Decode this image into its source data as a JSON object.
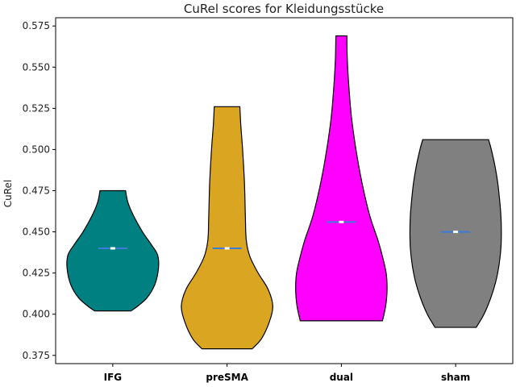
{
  "chart_data": {
    "type": "violin",
    "title": "CuRel scores for Kleidungsstücke",
    "xlabel": "",
    "ylabel": "CuRel",
    "ylim": [
      0.37,
      0.58
    ],
    "yticks": [
      0.375,
      0.4,
      0.425,
      0.45,
      0.475,
      0.5,
      0.525,
      0.55,
      0.575
    ],
    "ytick_labels": [
      "0.375",
      "0.400",
      "0.425",
      "0.450",
      "0.475",
      "0.500",
      "0.525",
      "0.550",
      "0.575"
    ],
    "grid": false,
    "series": [
      {
        "name": "IFG",
        "color": "#008080",
        "min": 0.402,
        "max": 0.475,
        "median": 0.44,
        "density": [
          [
            0.402,
            0.4
          ],
          [
            0.405,
            0.55
          ],
          [
            0.41,
            0.75
          ],
          [
            0.418,
            0.92
          ],
          [
            0.428,
            1.0
          ],
          [
            0.436,
            0.98
          ],
          [
            0.442,
            0.85
          ],
          [
            0.45,
            0.65
          ],
          [
            0.46,
            0.45
          ],
          [
            0.468,
            0.33
          ],
          [
            0.475,
            0.28
          ]
        ]
      },
      {
        "name": "preSMA",
        "color": "#DAA520",
        "min": 0.379,
        "max": 0.526,
        "median": 0.44,
        "density": [
          [
            0.379,
            0.55
          ],
          [
            0.385,
            0.75
          ],
          [
            0.395,
            0.92
          ],
          [
            0.405,
            1.0
          ],
          [
            0.415,
            0.9
          ],
          [
            0.425,
            0.68
          ],
          [
            0.435,
            0.5
          ],
          [
            0.445,
            0.42
          ],
          [
            0.46,
            0.4
          ],
          [
            0.48,
            0.38
          ],
          [
            0.5,
            0.34
          ],
          [
            0.515,
            0.3
          ],
          [
            0.526,
            0.28
          ]
        ]
      },
      {
        "name": "dual",
        "color": "#FF00FF",
        "min": 0.396,
        "max": 0.569,
        "median": 0.456,
        "density": [
          [
            0.396,
            0.9
          ],
          [
            0.405,
            0.97
          ],
          [
            0.415,
            1.0
          ],
          [
            0.425,
            0.98
          ],
          [
            0.435,
            0.9
          ],
          [
            0.445,
            0.8
          ],
          [
            0.46,
            0.62
          ],
          [
            0.48,
            0.45
          ],
          [
            0.5,
            0.32
          ],
          [
            0.52,
            0.22
          ],
          [
            0.54,
            0.16
          ],
          [
            0.555,
            0.13
          ],
          [
            0.569,
            0.12
          ]
        ]
      },
      {
        "name": "sham",
        "color": "#808080",
        "min": 0.392,
        "max": 0.506,
        "median": 0.45,
        "density": [
          [
            0.392,
            0.45
          ],
          [
            0.4,
            0.62
          ],
          [
            0.41,
            0.77
          ],
          [
            0.42,
            0.88
          ],
          [
            0.43,
            0.95
          ],
          [
            0.44,
            0.99
          ],
          [
            0.45,
            1.0
          ],
          [
            0.46,
            0.99
          ],
          [
            0.47,
            0.96
          ],
          [
            0.48,
            0.92
          ],
          [
            0.49,
            0.86
          ],
          [
            0.5,
            0.78
          ],
          [
            0.506,
            0.72
          ]
        ]
      }
    ]
  }
}
